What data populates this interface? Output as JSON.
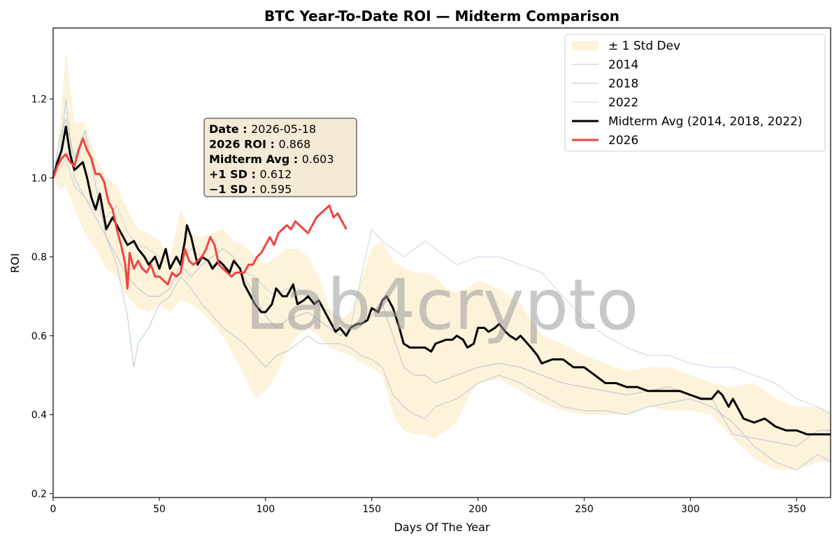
{
  "chart_data": {
    "type": "line",
    "title": "BTC Year-To-Date ROI — Midterm Comparison",
    "xlabel": "Days Of The Year",
    "ylabel": "ROI",
    "xlim": [
      0,
      366
    ],
    "ylim": [
      0.19,
      1.38
    ],
    "x_ticks": [
      0,
      50,
      100,
      150,
      200,
      250,
      300,
      350
    ],
    "y_ticks": [
      0.2,
      0.4,
      0.6,
      0.8,
      1.0,
      1.2
    ],
    "grid": false,
    "legend_position": "top-right",
    "watermark": "Lab4crypto",
    "annotation": {
      "rows": [
        {
          "label": "Date :",
          "value": "2026-05-18"
        },
        {
          "label": "2026 ROI :",
          "value": "0.868"
        },
        {
          "label": "Midterm Avg :",
          "value": "0.603"
        },
        {
          "label": "+1 SD :",
          "value": "0.612"
        },
        {
          "label": "−1 SD :",
          "value": "0.595"
        }
      ]
    },
    "band": {
      "name": "± 1 Std Dev",
      "color": "#fdf2da",
      "x": [
        0,
        3,
        6,
        10,
        15,
        20,
        25,
        30,
        35,
        40,
        45,
        50,
        55,
        60,
        65,
        70,
        75,
        80,
        85,
        90,
        95,
        100,
        105,
        110,
        115,
        120,
        125,
        130,
        135,
        140,
        145,
        150,
        155,
        160,
        165,
        170,
        175,
        180,
        185,
        190,
        195,
        200,
        210,
        220,
        230,
        240,
        250,
        260,
        270,
        280,
        290,
        300,
        310,
        320,
        330,
        340,
        350,
        360,
        366
      ],
      "upper": [
        1.0,
        1.12,
        1.32,
        1.14,
        1.14,
        1.05,
        1.0,
        0.98,
        0.92,
        0.87,
        0.86,
        0.84,
        0.8,
        0.92,
        0.86,
        0.85,
        0.86,
        0.87,
        0.84,
        0.83,
        0.8,
        0.78,
        0.8,
        0.82,
        0.82,
        0.8,
        0.75,
        0.67,
        0.64,
        0.66,
        0.74,
        0.82,
        0.84,
        0.79,
        0.77,
        0.76,
        0.76,
        0.75,
        0.72,
        0.71,
        0.72,
        0.74,
        0.72,
        0.68,
        0.6,
        0.58,
        0.55,
        0.53,
        0.51,
        0.52,
        0.52,
        0.5,
        0.48,
        0.47,
        0.48,
        0.44,
        0.42,
        0.42,
        0.41
      ],
      "lower": [
        1.0,
        0.97,
        0.98,
        0.92,
        0.86,
        0.82,
        0.77,
        0.75,
        0.7,
        0.67,
        0.66,
        0.68,
        0.66,
        0.69,
        0.68,
        0.66,
        0.63,
        0.6,
        0.55,
        0.5,
        0.44,
        0.46,
        0.5,
        0.56,
        0.6,
        0.62,
        0.6,
        0.57,
        0.56,
        0.55,
        0.53,
        0.52,
        0.5,
        0.4,
        0.36,
        0.35,
        0.35,
        0.34,
        0.36,
        0.38,
        0.44,
        0.48,
        0.49,
        0.46,
        0.43,
        0.41,
        0.4,
        0.4,
        0.4,
        0.42,
        0.41,
        0.41,
        0.4,
        0.34,
        0.29,
        0.26,
        0.26,
        0.28,
        0.28
      ]
    },
    "series": [
      {
        "name": "2014",
        "color": "#b7c9dc",
        "x": [
          0,
          3,
          6,
          10,
          15,
          20,
          25,
          30,
          35,
          38,
          40,
          45,
          50,
          55,
          60,
          65,
          70,
          75,
          80,
          85,
          90,
          95,
          100,
          105,
          110,
          115,
          120,
          125,
          130,
          135,
          140,
          145,
          150,
          155,
          160,
          165,
          170,
          175,
          180,
          185,
          190,
          200,
          210,
          220,
          230,
          240,
          250,
          260,
          270,
          280,
          290,
          300,
          310,
          320,
          330,
          340,
          350,
          360,
          366
        ],
        "values": [
          1.0,
          1.05,
          1.2,
          1.0,
          0.95,
          0.9,
          0.85,
          0.78,
          0.65,
          0.52,
          0.58,
          0.62,
          0.68,
          0.7,
          0.75,
          0.72,
          0.68,
          0.65,
          0.62,
          0.6,
          0.58,
          0.55,
          0.52,
          0.55,
          0.56,
          0.58,
          0.6,
          0.58,
          0.58,
          0.58,
          0.57,
          0.55,
          0.54,
          0.52,
          0.45,
          0.42,
          0.4,
          0.39,
          0.42,
          0.43,
          0.44,
          0.48,
          0.5,
          0.48,
          0.45,
          0.42,
          0.41,
          0.41,
          0.4,
          0.42,
          0.43,
          0.44,
          0.42,
          0.38,
          0.32,
          0.28,
          0.26,
          0.3,
          0.28
        ]
      },
      {
        "name": "2018",
        "color": "#b8c4cf",
        "x": [
          0,
          3,
          6,
          10,
          15,
          20,
          25,
          30,
          35,
          40,
          45,
          50,
          55,
          60,
          65,
          70,
          75,
          80,
          85,
          90,
          95,
          100,
          105,
          110,
          115,
          120,
          125,
          130,
          135,
          140,
          145,
          150,
          155,
          160,
          165,
          170,
          175,
          180,
          185,
          190,
          200,
          210,
          220,
          230,
          240,
          250,
          260,
          270,
          280,
          290,
          300,
          310,
          320,
          330,
          340,
          350,
          360,
          366
        ],
        "values": [
          1.0,
          1.1,
          1.15,
          1.05,
          1.12,
          0.98,
          0.85,
          0.8,
          0.75,
          0.72,
          0.7,
          0.7,
          0.72,
          0.78,
          0.75,
          0.78,
          0.8,
          0.82,
          0.8,
          0.75,
          0.7,
          0.65,
          0.62,
          0.64,
          0.65,
          0.66,
          0.64,
          0.62,
          0.6,
          0.62,
          0.63,
          0.65,
          0.68,
          0.6,
          0.52,
          0.5,
          0.5,
          0.48,
          0.49,
          0.5,
          0.52,
          0.53,
          0.52,
          0.5,
          0.48,
          0.47,
          0.46,
          0.45,
          0.46,
          0.47,
          0.45,
          0.44,
          0.35,
          0.34,
          0.33,
          0.32,
          0.36,
          0.36
        ]
      },
      {
        "name": "2022",
        "color": "#c4d4e6",
        "x": [
          0,
          3,
          6,
          10,
          15,
          20,
          25,
          30,
          35,
          40,
          45,
          50,
          55,
          60,
          65,
          70,
          75,
          80,
          85,
          90,
          95,
          100,
          105,
          110,
          115,
          120,
          125,
          130,
          135,
          140,
          145,
          150,
          155,
          160,
          165,
          170,
          175,
          180,
          185,
          190,
          200,
          210,
          220,
          230,
          240,
          250,
          260,
          270,
          280,
          290,
          300,
          310,
          320,
          330,
          340,
          350,
          360,
          366
        ],
        "values": [
          1.0,
          1.02,
          1.05,
          0.98,
          0.95,
          0.92,
          0.9,
          0.93,
          0.86,
          0.83,
          0.82,
          0.8,
          0.78,
          0.8,
          0.82,
          0.8,
          0.78,
          0.78,
          0.76,
          0.76,
          0.75,
          0.72,
          0.7,
          0.72,
          0.72,
          0.7,
          0.68,
          0.66,
          0.64,
          0.62,
          0.75,
          0.87,
          0.84,
          0.82,
          0.8,
          0.82,
          0.84,
          0.82,
          0.8,
          0.78,
          0.8,
          0.8,
          0.78,
          0.76,
          0.7,
          0.64,
          0.6,
          0.57,
          0.55,
          0.55,
          0.53,
          0.52,
          0.52,
          0.5,
          0.48,
          0.44,
          0.42,
          0.4
        ]
      },
      {
        "name": "Midterm Avg (2014, 2018, 2022)",
        "color": "#000000",
        "width": 3,
        "x": [
          0,
          2,
          4,
          5,
          6,
          8,
          10,
          12,
          14,
          16,
          18,
          20,
          22,
          25,
          28,
          30,
          33,
          35,
          38,
          40,
          43,
          45,
          48,
          50,
          53,
          55,
          58,
          60,
          62,
          63,
          65,
          68,
          70,
          73,
          75,
          78,
          80,
          83,
          85,
          88,
          90,
          93,
          95,
          98,
          100,
          103,
          105,
          108,
          110,
          113,
          115,
          118,
          120,
          123,
          125,
          128,
          130,
          133,
          135,
          138,
          140,
          143,
          145,
          148,
          150,
          153,
          155,
          157,
          160,
          163,
          165,
          168,
          170,
          175,
          178,
          180,
          185,
          188,
          190,
          193,
          195,
          198,
          200,
          203,
          205,
          208,
          210,
          213,
          215,
          218,
          220,
          225,
          228,
          230,
          235,
          240,
          245,
          250,
          255,
          260,
          265,
          270,
          275,
          280,
          285,
          290,
          295,
          300,
          305,
          310,
          313,
          315,
          318,
          320,
          323,
          325,
          330,
          335,
          340,
          345,
          350,
          355,
          360,
          366
        ],
        "values": [
          1.0,
          1.04,
          1.07,
          1.1,
          1.13,
          1.06,
          1.02,
          1.03,
          1.04,
          1.0,
          0.95,
          0.92,
          0.96,
          0.87,
          0.9,
          0.88,
          0.85,
          0.83,
          0.84,
          0.82,
          0.8,
          0.78,
          0.8,
          0.77,
          0.82,
          0.77,
          0.8,
          0.78,
          0.84,
          0.88,
          0.85,
          0.78,
          0.8,
          0.79,
          0.77,
          0.79,
          0.78,
          0.76,
          0.79,
          0.77,
          0.73,
          0.7,
          0.68,
          0.66,
          0.66,
          0.68,
          0.72,
          0.7,
          0.7,
          0.73,
          0.68,
          0.69,
          0.7,
          0.68,
          0.69,
          0.66,
          0.64,
          0.61,
          0.62,
          0.6,
          0.62,
          0.63,
          0.63,
          0.64,
          0.67,
          0.66,
          0.69,
          0.7,
          0.67,
          0.62,
          0.58,
          0.57,
          0.57,
          0.57,
          0.56,
          0.58,
          0.59,
          0.59,
          0.6,
          0.59,
          0.57,
          0.58,
          0.62,
          0.62,
          0.61,
          0.62,
          0.63,
          0.61,
          0.6,
          0.59,
          0.6,
          0.57,
          0.55,
          0.53,
          0.54,
          0.54,
          0.52,
          0.52,
          0.5,
          0.48,
          0.48,
          0.47,
          0.47,
          0.46,
          0.46,
          0.46,
          0.46,
          0.45,
          0.44,
          0.44,
          0.46,
          0.45,
          0.42,
          0.44,
          0.41,
          0.39,
          0.38,
          0.39,
          0.37,
          0.36,
          0.36,
          0.35,
          0.35,
          0.35
        ]
      },
      {
        "name": "2026",
        "color": "#ef4444",
        "width": 3,
        "x": [
          0,
          2,
          4,
          6,
          8,
          10,
          12,
          14,
          16,
          18,
          20,
          22,
          24,
          26,
          28,
          30,
          32,
          34,
          35,
          36,
          37,
          38,
          40,
          42,
          44,
          46,
          48,
          50,
          52,
          54,
          56,
          58,
          60,
          62,
          64,
          66,
          68,
          70,
          72,
          74,
          76,
          78,
          80,
          82,
          84,
          86,
          88,
          90,
          92,
          94,
          96,
          98,
          100,
          102,
          104,
          106,
          108,
          110,
          112,
          114,
          116,
          118,
          120,
          122,
          124,
          126,
          128,
          130,
          132,
          134,
          136,
          138
        ],
        "values": [
          1.0,
          1.03,
          1.05,
          1.06,
          1.04,
          1.03,
          1.07,
          1.1,
          1.07,
          1.05,
          1.01,
          1.01,
          0.99,
          0.94,
          0.92,
          0.87,
          0.83,
          0.78,
          0.72,
          0.81,
          0.79,
          0.77,
          0.79,
          0.77,
          0.76,
          0.78,
          0.75,
          0.75,
          0.74,
          0.73,
          0.76,
          0.75,
          0.76,
          0.82,
          0.79,
          0.78,
          0.79,
          0.8,
          0.82,
          0.85,
          0.83,
          0.78,
          0.77,
          0.76,
          0.75,
          0.76,
          0.76,
          0.76,
          0.78,
          0.78,
          0.8,
          0.81,
          0.83,
          0.85,
          0.83,
          0.86,
          0.87,
          0.88,
          0.87,
          0.89,
          0.88,
          0.87,
          0.86,
          0.88,
          0.9,
          0.91,
          0.92,
          0.93,
          0.9,
          0.91,
          0.89,
          0.87
        ]
      }
    ]
  }
}
